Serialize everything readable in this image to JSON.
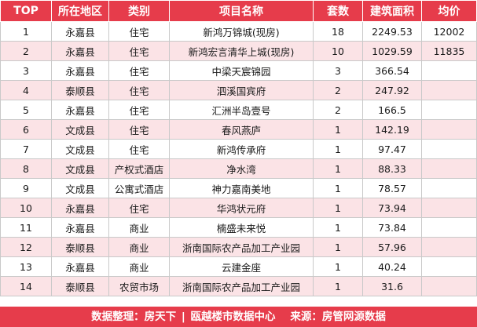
{
  "table": {
    "headers": [
      "TOP",
      "所在地区",
      "类别",
      "项目名称",
      "套数",
      "建筑面积",
      "均价"
    ],
    "rows": [
      [
        "1",
        "永嘉县",
        "住宅",
        "新鸿万锦城(现房)",
        "18",
        "2249.53",
        "12002"
      ],
      [
        "2",
        "永嘉县",
        "住宅",
        "新鸿宏言清华上城(现房)",
        "10",
        "1029.59",
        "11835"
      ],
      [
        "3",
        "永嘉县",
        "住宅",
        "中梁天宸锦园",
        "3",
        "366.54",
        ""
      ],
      [
        "4",
        "泰顺县",
        "住宅",
        "泗溪国宾府",
        "2",
        "247.92",
        ""
      ],
      [
        "5",
        "永嘉县",
        "住宅",
        "汇洲半岛壹号",
        "2",
        "166.5",
        ""
      ],
      [
        "6",
        "文成县",
        "住宅",
        "春风燕庐",
        "1",
        "142.19",
        ""
      ],
      [
        "7",
        "文成县",
        "住宅",
        "新鸿传承府",
        "1",
        "97.47",
        ""
      ],
      [
        "8",
        "文成县",
        "产权式酒店",
        "净水湾",
        "1",
        "88.33",
        ""
      ],
      [
        "9",
        "文成县",
        "公寓式酒店",
        "神力嘉南美地",
        "1",
        "78.57",
        ""
      ],
      [
        "10",
        "永嘉县",
        "住宅",
        "华鸿状元府",
        "1",
        "73.94",
        ""
      ],
      [
        "11",
        "永嘉县",
        "商业",
        "楠盛未来悦",
        "1",
        "73.84",
        ""
      ],
      [
        "12",
        "泰顺县",
        "商业",
        "浙南国际农产品加工产业园",
        "1",
        "57.96",
        ""
      ],
      [
        "13",
        "永嘉县",
        "商业",
        "云建金座",
        "1",
        "40.24",
        ""
      ],
      [
        "14",
        "泰顺县",
        "农贸市场",
        "浙南国际农产品加工产业园",
        "1",
        "31.6",
        ""
      ]
    ]
  },
  "footer": {
    "data_label": "数据整理：",
    "org1": "房天下",
    "sep": "|",
    "org2": "瓯越楼市数据中心",
    "source_label": "来源：",
    "source": "房管网源数据"
  },
  "colors": {
    "header_bg": "#e63c4b",
    "stripe_bg": "#fbe3e6",
    "text": "#1a1a1a"
  }
}
